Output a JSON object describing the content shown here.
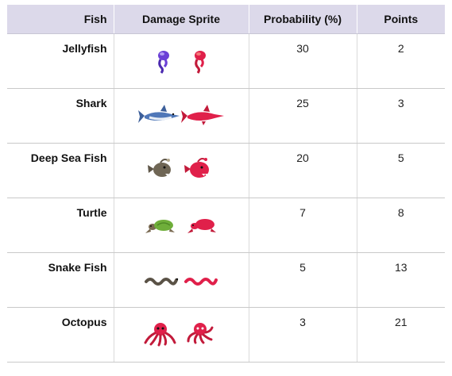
{
  "headers": {
    "fish": "Fish",
    "sprite": "Damage Sprite",
    "probability": "Probability (%)",
    "points": "Points"
  },
  "rows": [
    {
      "fish": "Jellyfish",
      "sprite": "jellyfish-sprite",
      "probability": "30",
      "points": "2"
    },
    {
      "fish": "Shark",
      "sprite": "shark-sprite",
      "probability": "25",
      "points": "3"
    },
    {
      "fish": "Deep Sea Fish",
      "sprite": "deep-sea-fish-sprite",
      "probability": "20",
      "points": "5"
    },
    {
      "fish": "Turtle",
      "sprite": "turtle-sprite",
      "probability": "7",
      "points": "8"
    },
    {
      "fish": "Snake Fish",
      "sprite": "snake-fish-sprite",
      "probability": "5",
      "points": "13"
    },
    {
      "fish": "Octopus",
      "sprite": "octopus-sprite",
      "probability": "3",
      "points": "21"
    }
  ],
  "colors": {
    "header_bg": "#dcd9ea",
    "damage": "#e0204a"
  }
}
